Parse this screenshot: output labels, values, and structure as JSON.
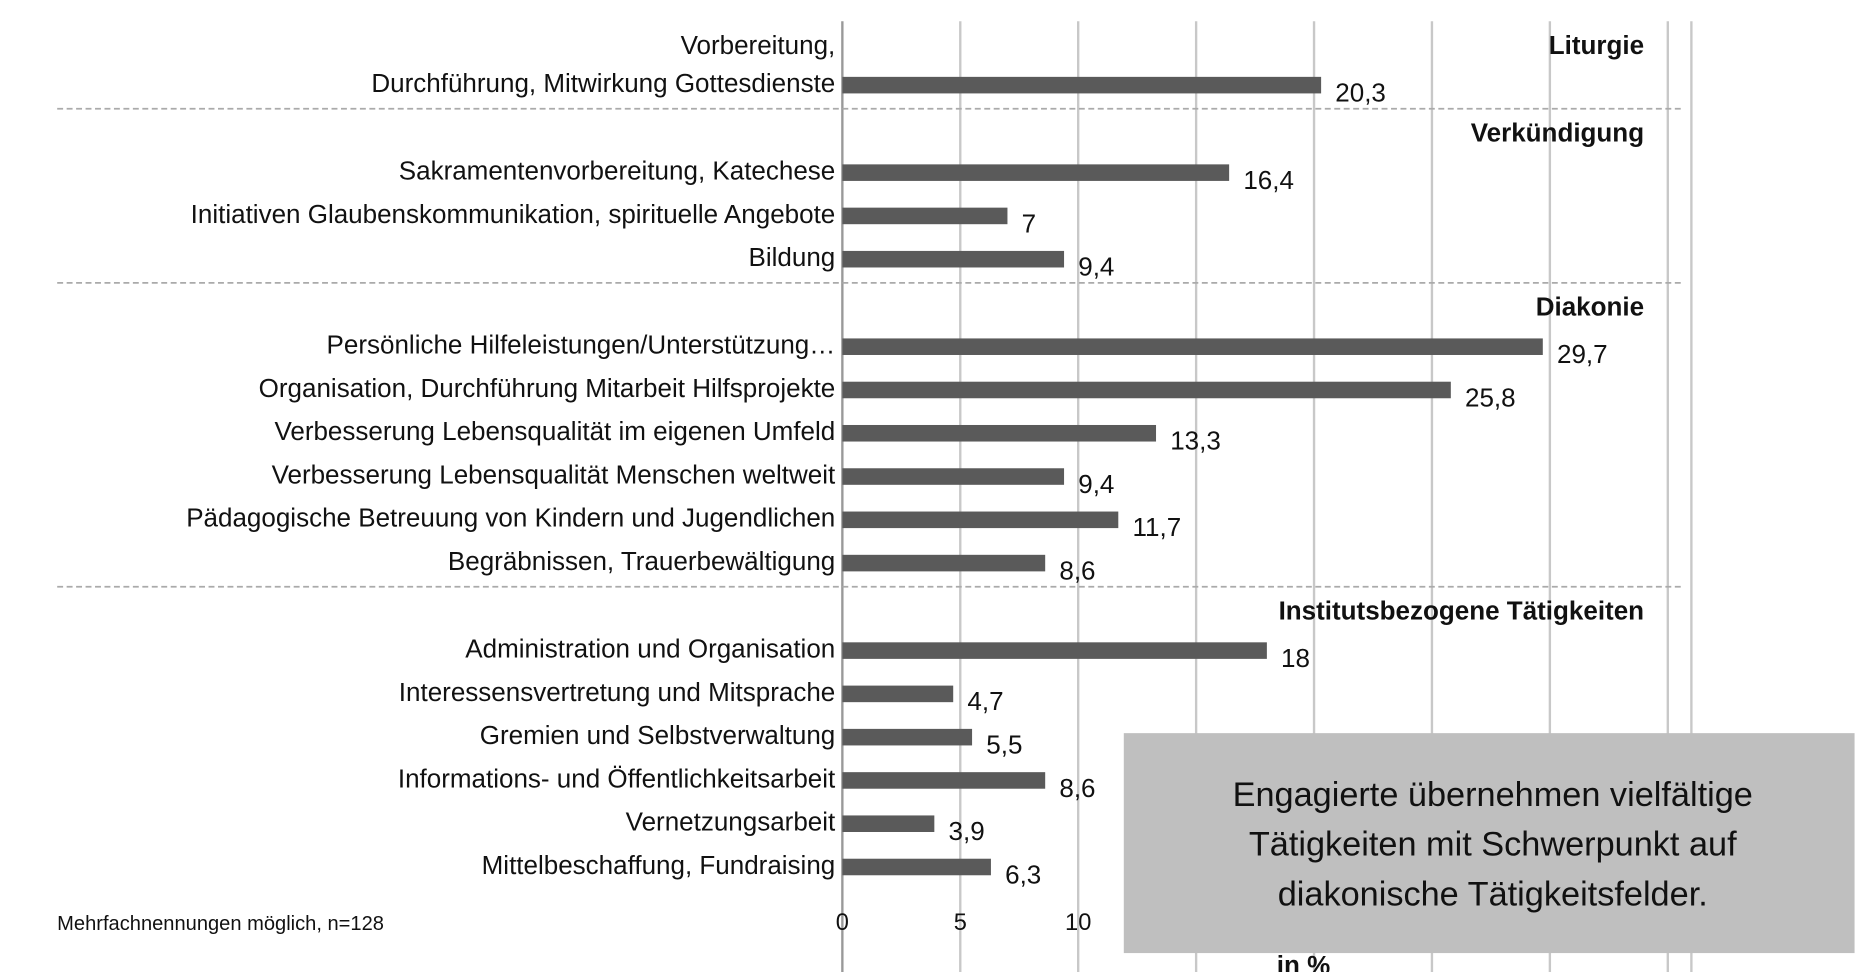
{
  "chart_data": {
    "type": "bar",
    "orientation": "horizontal",
    "color": "#5a5a5a",
    "group_color": "#c00000",
    "xlabel": "in %",
    "xlim": [
      0,
      36
    ],
    "xticks": [
      0,
      5,
      10,
      15,
      20,
      25,
      30,
      35
    ],
    "grid": true,
    "groups": [
      {
        "name": "Liturgie",
        "categories": [
          [
            "Vorbereitung,",
            "Durchführung, Mitwirkung Gottesdienste"
          ]
        ],
        "values": [
          20.3
        ],
        "value_labels": [
          "20,3"
        ]
      },
      {
        "name": "Verkündigung",
        "categories": [
          "Sakramentenvorbereitung, Katechese",
          "Initiativen Glaubenskommunikation, spirituelle Angebote",
          "Bildung"
        ],
        "values": [
          16.4,
          7,
          9.4
        ],
        "value_labels": [
          "16,4",
          "7",
          "9,4"
        ]
      },
      {
        "name": "Diakonie",
        "categories": [
          "Persönliche Hilfeleistungen/Unterstützung…",
          "Organisation, Durchführung Mitarbeit Hilfsprojekte",
          "Verbesserung Lebensqualität im eigenen Umfeld",
          "Verbesserung Lebensqualität Menschen weltweit",
          "Pädagogische Betreuung von Kindern und Jugendlichen",
          "Begräbnissen, Trauerbewältigung"
        ],
        "values": [
          29.7,
          25.8,
          13.3,
          9.4,
          11.7,
          8.6
        ],
        "value_labels": [
          "29,7",
          "25,8",
          "13,3",
          "9,4",
          "11,7",
          "8,6"
        ]
      },
      {
        "name": "Institutsbezogene Tätigkeiten",
        "categories": [
          "Administration und Organisation",
          "Interessensvertretung und Mitsprache",
          "Gremien und Selbstverwaltung",
          "Informations- und Öffentlichkeitsarbeit",
          "Vernetzungsarbeit",
          "Mittelbeschaffung, Fundraising"
        ],
        "values": [
          18,
          4.7,
          5.5,
          8.6,
          3.9,
          6.3
        ],
        "value_labels": [
          "18",
          "4,7",
          "5,5",
          "8,6",
          "3,9",
          "6,3"
        ]
      }
    ],
    "footnote": "Mehrfachnennungen möglich, n=128",
    "annotation": [
      "Engagierte übernehmen vielfältige",
      "Tätigkeiten mit Schwerpunkt auf",
      "diakonische Tätigkeitsfelder."
    ]
  }
}
